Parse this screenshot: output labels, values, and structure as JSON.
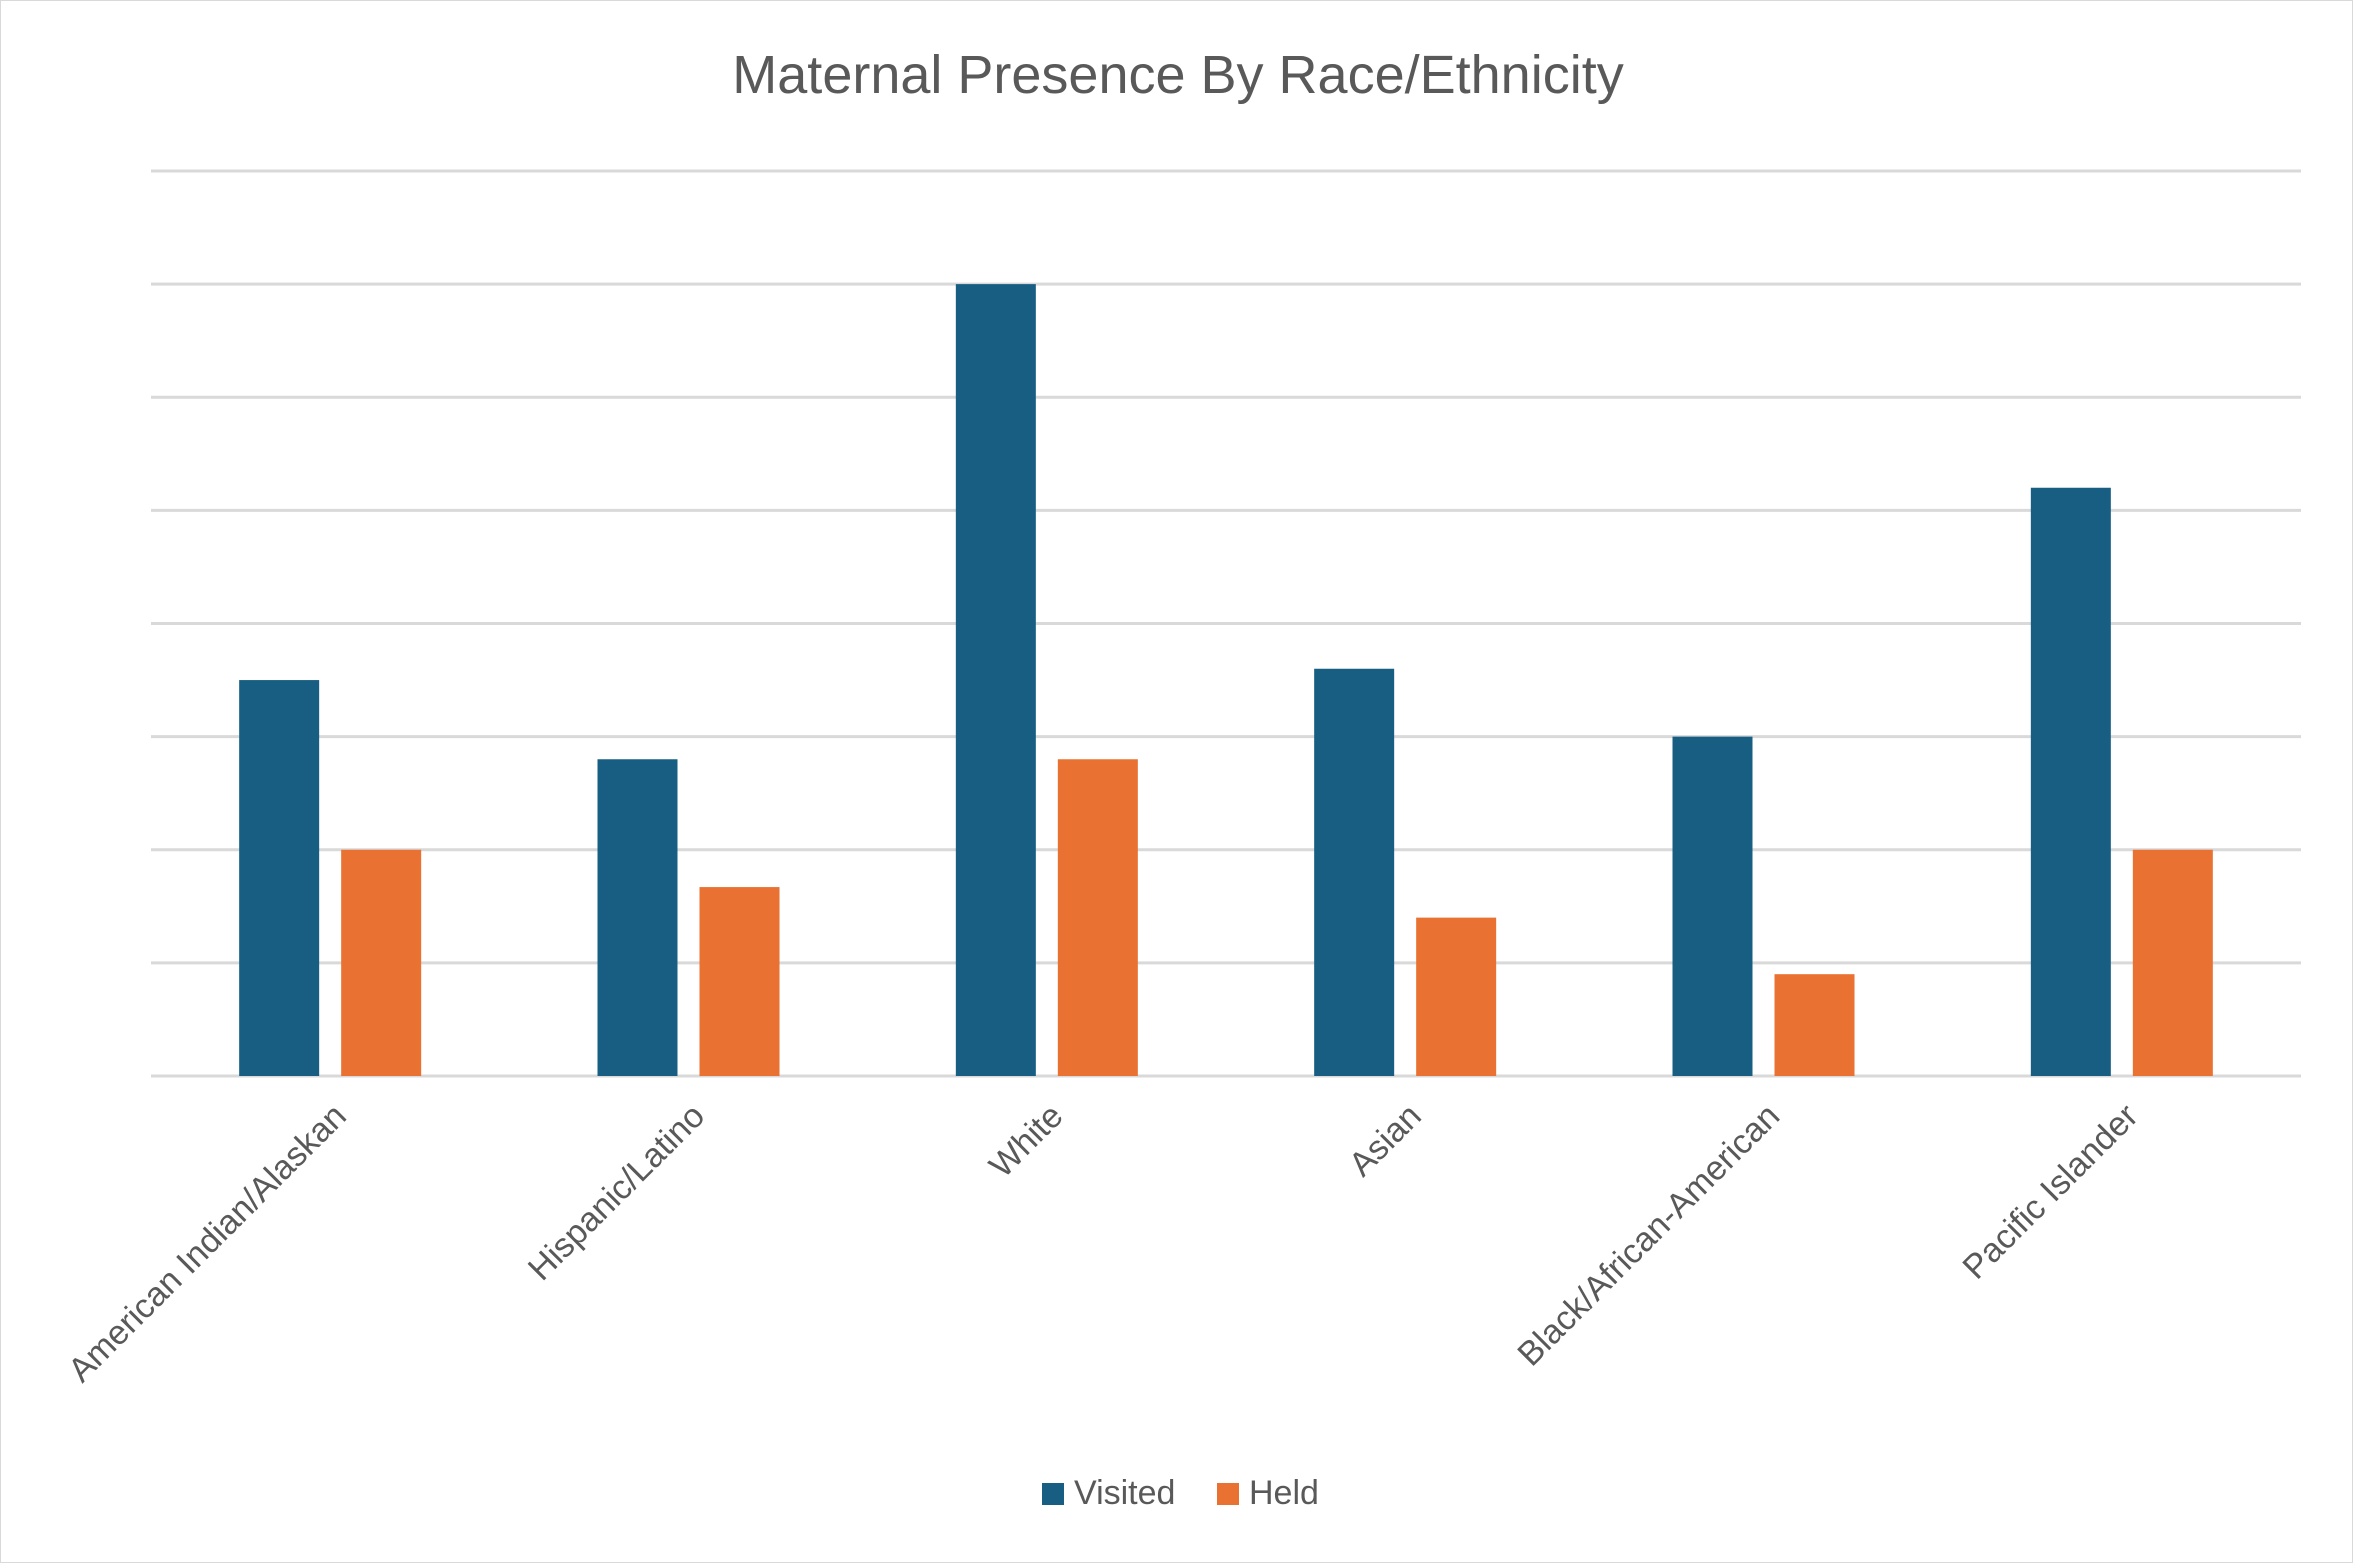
{
  "chart_data": {
    "type": "bar",
    "title": "Maternal Presence By Race/Ethnicity",
    "categories": [
      "American Indian/Alaskan",
      "Hispanic/Latino",
      "White",
      "Asian",
      "Black/African-American",
      "Pacific Islander"
    ],
    "series": [
      {
        "name": "Visited",
        "color": "#175e82",
        "values": [
          3.5,
          2.8,
          7.0,
          3.6,
          3.0,
          5.2
        ]
      },
      {
        "name": "Held",
        "color": "#e97132",
        "values": [
          2.0,
          1.67,
          2.8,
          1.4,
          0.9,
          2.0
        ]
      }
    ],
    "ylim": [
      0,
      8
    ],
    "gridlines": [
      0,
      1,
      2,
      3,
      4,
      5,
      6,
      7,
      8
    ],
    "grid": true,
    "y_tick_labels_shown": false,
    "legend_position": "bottom"
  }
}
